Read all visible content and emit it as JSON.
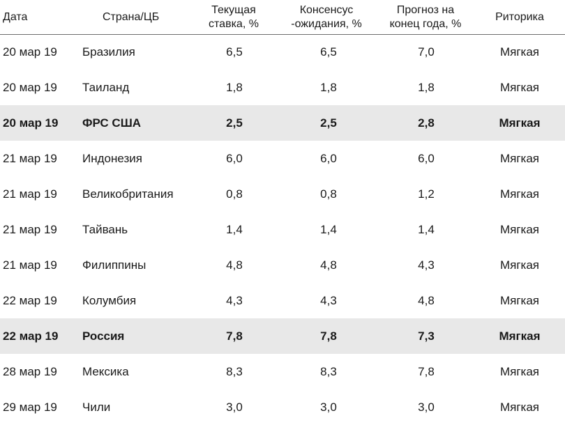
{
  "headers": {
    "date": "Дата",
    "country": "Страна/ЦБ",
    "current": "Текущая\nставка, %",
    "consensus": "Консенсус\n-ожидания, %",
    "forecast": "Прогноз на\nконец года, %",
    "rhetoric": "Риторика"
  },
  "rows": [
    {
      "date": "20 мар 19",
      "country": "Бразилия",
      "current": "6,5",
      "consensus": "6,5",
      "forecast": "7,0",
      "rhetoric": "Мягкая",
      "highlight": false
    },
    {
      "date": "20 мар 19",
      "country": "Таиланд",
      "current": "1,8",
      "consensus": "1,8",
      "forecast": "1,8",
      "rhetoric": "Мягкая",
      "highlight": false
    },
    {
      "date": "20 мар 19",
      "country": "ФРС США",
      "current": "2,5",
      "consensus": "2,5",
      "forecast": "2,8",
      "rhetoric": "Мягкая",
      "highlight": true
    },
    {
      "date": "21 мар 19",
      "country": "Индонезия",
      "current": "6,0",
      "consensus": "6,0",
      "forecast": "6,0",
      "rhetoric": "Мягкая",
      "highlight": false
    },
    {
      "date": "21 мар 19",
      "country": "Великобритания",
      "current": "0,8",
      "consensus": "0,8",
      "forecast": "1,2",
      "rhetoric": "Мягкая",
      "highlight": false
    },
    {
      "date": "21 мар 19",
      "country": "Тайвань",
      "current": "1,4",
      "consensus": "1,4",
      "forecast": "1,4",
      "rhetoric": "Мягкая",
      "highlight": false
    },
    {
      "date": "21 мар 19",
      "country": "Филиппины",
      "current": "4,8",
      "consensus": "4,8",
      "forecast": "4,3",
      "rhetoric": "Мягкая",
      "highlight": false
    },
    {
      "date": "22 мар 19",
      "country": "Колумбия",
      "current": "4,3",
      "consensus": "4,3",
      "forecast": "4,8",
      "rhetoric": "Мягкая",
      "highlight": false
    },
    {
      "date": "22 мар 19",
      "country": "Россия",
      "current": "7,8",
      "consensus": "7,8",
      "forecast": "7,3",
      "rhetoric": "Мягкая",
      "highlight": true
    },
    {
      "date": "28 мар 19",
      "country": "Мексика",
      "current": "8,3",
      "consensus": "8,3",
      "forecast": "7,8",
      "rhetoric": "Мягкая",
      "highlight": false
    },
    {
      "date": "29 мар 19",
      "country": "Чили",
      "current": "3,0",
      "consensus": "3,0",
      "forecast": "3,0",
      "rhetoric": "Мягкая",
      "highlight": false
    }
  ]
}
